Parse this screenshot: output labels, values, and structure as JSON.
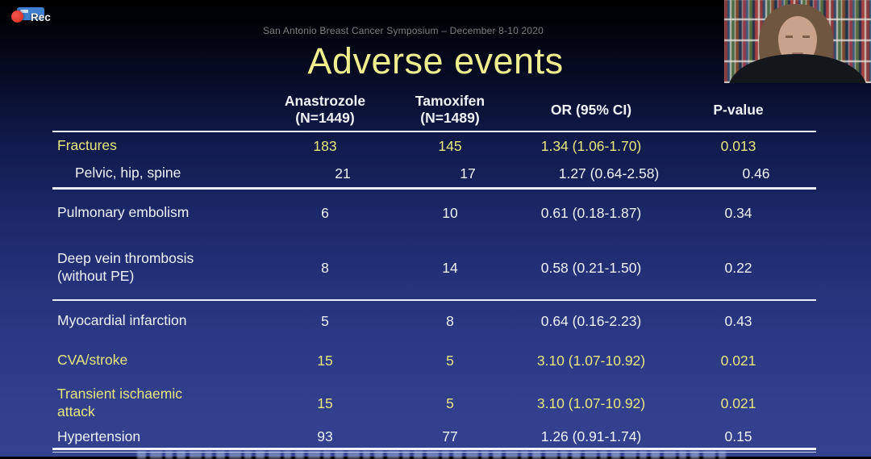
{
  "recorder": {
    "rec_label": "Rec"
  },
  "slide": {
    "conference_header": "San Antonio Breast Cancer Symposium – December 8-10 2020",
    "title": "Adverse events",
    "colors": {
      "highlight_yellow": "#e7e77d",
      "title_yellow": "#efee8e",
      "body_white": "#eef1f6",
      "background_bottom": "#33418f",
      "background_top": "#000000"
    }
  },
  "table": {
    "headers": {
      "arm1_line1": "Anastrozole",
      "arm1_line2": "(N=1449)",
      "arm2_line1": "Tamoxifen",
      "arm2_line2": "(N=1489)",
      "or_ci": "OR (95% CI)",
      "p_value": "P-value"
    },
    "rows": [
      {
        "label": "Fractures",
        "anastrozole": "183",
        "tamoxifen": "145",
        "or_ci": "1.34 (1.06-1.70)",
        "p_value": "0.013",
        "highlight": true
      },
      {
        "label": "Pelvic, hip, spine",
        "anastrozole": "21",
        "tamoxifen": "17",
        "or_ci": "1.27 (0.64-2.58)",
        "p_value": "0.46",
        "highlight": false
      },
      {
        "label": "Pulmonary embolism",
        "anastrozole": "6",
        "tamoxifen": "10",
        "or_ci": "0.61 (0.18-1.87)",
        "p_value": "0.34",
        "highlight": false
      },
      {
        "label": "Deep vein thrombosis\n(without PE)",
        "anastrozole": "8",
        "tamoxifen": "14",
        "or_ci": "0.58 (0.21-1.50)",
        "p_value": "0.22",
        "highlight": false
      },
      {
        "label": "Myocardial infarction",
        "anastrozole": "5",
        "tamoxifen": "8",
        "or_ci": "0.64 (0.16-2.23)",
        "p_value": "0.43",
        "highlight": false
      },
      {
        "label": "CVA/stroke",
        "anastrozole": "15",
        "tamoxifen": "5",
        "or_ci": "3.10 (1.07-10.92)",
        "p_value": "0.021",
        "highlight": true
      },
      {
        "label": "Transient ischaemic\nattack",
        "anastrozole": "15",
        "tamoxifen": "5",
        "or_ci": "3.10 (1.07-10.92)",
        "p_value": "0.021",
        "highlight": true
      },
      {
        "label": "Hypertension",
        "anastrozole": "93",
        "tamoxifen": "77",
        "or_ci": "1.26 (0.91-1.74)",
        "p_value": "0.15",
        "highlight": false
      }
    ]
  }
}
